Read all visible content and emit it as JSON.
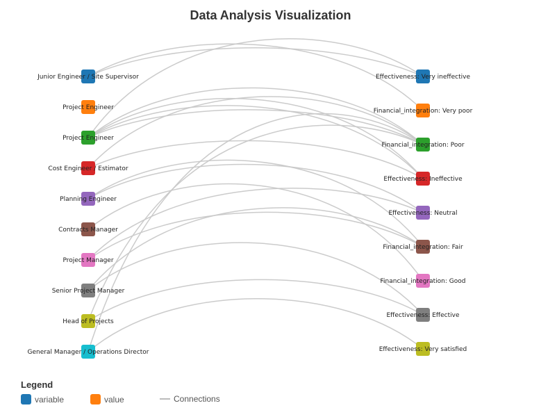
{
  "title": "Data Analysis Visualization",
  "diagram": {
    "link_color": "#c8c8c8",
    "left_nodes": [
      {
        "label": "Junior Engineer / Site Supervisor",
        "color": "#1f77b4"
      },
      {
        "label": "Project Engineer",
        "color": "#ff7f0e"
      },
      {
        "label": "Project Engineer",
        "color": "#2ca02c"
      },
      {
        "label": "Cost Engineer / Estimator",
        "color": "#d62728"
      },
      {
        "label": "Planning Engineer",
        "color": "#9467bd"
      },
      {
        "label": "Contracts Manager",
        "color": "#8c564b"
      },
      {
        "label": "Project Manager",
        "color": "#e377c2"
      },
      {
        "label": "Senior Project Manager",
        "color": "#7f7f7f"
      },
      {
        "label": "Head of Projects",
        "color": "#bcbd22"
      },
      {
        "label": "General Manager / Operations Director",
        "color": "#17becf"
      }
    ],
    "right_nodes": [
      {
        "label": "Effectiveness: Very ineffective",
        "color": "#1f77b4"
      },
      {
        "label": "Financial_integration: Very poor",
        "color": "#ff7f0e"
      },
      {
        "label": "Financial_integration: Poor",
        "color": "#2ca02c"
      },
      {
        "label": "Effectiveness: Ineffective",
        "color": "#d62728"
      },
      {
        "label": "Effectiveness: Neutral",
        "color": "#9467bd"
      },
      {
        "label": "Financial_integration: Fair",
        "color": "#8c564b"
      },
      {
        "label": "Financial_integration: Good",
        "color": "#e377c2"
      },
      {
        "label": "Effectiveness: Effective",
        "color": "#7f7f7f"
      },
      {
        "label": "Effectiveness: Very satisfied",
        "color": "#bcbd22"
      }
    ],
    "links": [
      {
        "source": 0,
        "target": 0
      },
      {
        "source": 0,
        "target": 1
      },
      {
        "source": 2,
        "target": 0
      },
      {
        "source": 2,
        "target": 2
      },
      {
        "source": 2,
        "target": 2
      },
      {
        "source": 2,
        "target": 3
      },
      {
        "source": 2,
        "target": 3
      },
      {
        "source": 3,
        "target": 2
      },
      {
        "source": 3,
        "target": 3
      },
      {
        "source": 4,
        "target": 4
      },
      {
        "source": 4,
        "target": 5
      },
      {
        "source": 5,
        "target": 6
      },
      {
        "source": 6,
        "target": 4
      },
      {
        "source": 6,
        "target": 5
      },
      {
        "source": 7,
        "target": 5
      },
      {
        "source": 7,
        "target": 7
      },
      {
        "source": 8,
        "target": 2
      },
      {
        "source": 8,
        "target": 7
      },
      {
        "source": 9,
        "target": 2
      },
      {
        "source": 9,
        "target": 8
      }
    ]
  },
  "legend": {
    "title": "Legend",
    "items": [
      {
        "label": "variable",
        "kind": "swatch",
        "color": "#1f77b4"
      },
      {
        "label": "value",
        "kind": "swatch",
        "color": "#ff7f0e"
      },
      {
        "label": "Connections",
        "kind": "line",
        "color": "#bbbbbb"
      }
    ]
  }
}
